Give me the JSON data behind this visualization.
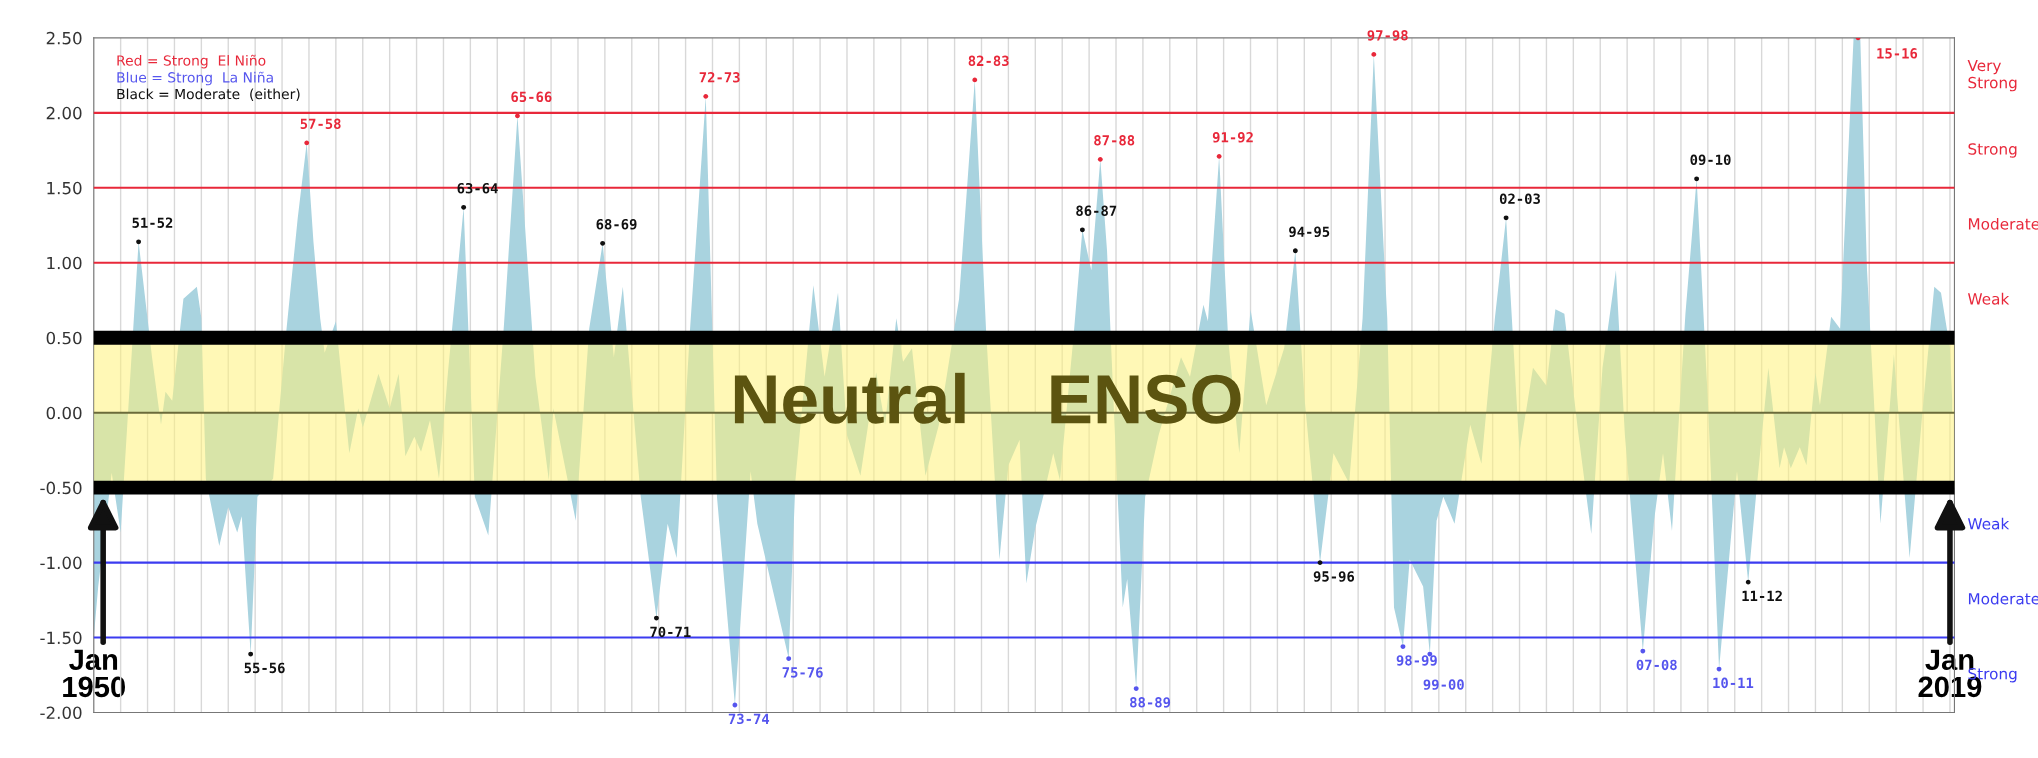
{
  "chart_data": {
    "type": "area",
    "x": [
      "1950-01",
      "1950-03",
      "1950-09",
      "1951-01",
      "1951-09",
      "1952-03",
      "1952-07",
      "1952-09",
      "1952-12",
      "1953-05",
      "1953-11",
      "1954-01",
      "1954-03",
      "1954-09",
      "1955-01",
      "1955-05",
      "1955-07",
      "1955-11",
      "1956-02",
      "1956-09",
      "1957-03",
      "1957-08",
      "1957-12",
      "1958-03",
      "1958-06",
      "1958-08",
      "1959-01",
      "1959-07",
      "1959-11",
      "1960-01",
      "1960-08",
      "1961-01",
      "1961-05",
      "1961-08",
      "1961-12",
      "1962-03",
      "1962-07",
      "1962-11",
      "1963-03",
      "1963-10",
      "1964-03",
      "1964-09",
      "1965-04",
      "1965-10",
      "1966-06",
      "1966-12",
      "1967-02",
      "1967-12",
      "1968-06",
      "1968-12",
      "1969-05",
      "1969-09",
      "1970-05",
      "1970-12",
      "1971-05",
      "1971-09",
      "1972-03",
      "1972-10",
      "1973-03",
      "1973-11",
      "1974-06",
      "1974-09",
      "1975-11",
      "1976-02",
      "1976-10",
      "1977-03",
      "1977-09",
      "1978-01",
      "1978-07",
      "1979-02",
      "1979-06",
      "1979-11",
      "1980-02",
      "1980-06",
      "1980-12",
      "1981-06",
      "1982-03",
      "1982-10",
      "1983-03",
      "1983-09",
      "1984-01",
      "1984-06",
      "1984-09",
      "1985-01",
      "1985-05",
      "1985-09",
      "1985-12",
      "1986-06",
      "1986-10",
      "1987-02",
      "1987-06",
      "1987-09",
      "1988-01",
      "1988-04",
      "1988-06",
      "1988-10",
      "1989-02",
      "1989-08",
      "1990-06",
      "1990-10",
      "1991-04",
      "1991-06",
      "1991-11",
      "1992-03",
      "1992-08",
      "1993-01",
      "1993-08",
      "1994-04",
      "1994-09",
      "1995-01",
      "1995-08",
      "1996-02",
      "1996-09",
      "1997-03",
      "1997-08",
      "1998-02",
      "1998-05",
      "1998-09",
      "1998-12",
      "1999-06",
      "1999-09",
      "1999-12",
      "2000-03",
      "2000-08",
      "2001-03",
      "2001-08",
      "2002-02",
      "2002-07",
      "2003-01",
      "2003-07",
      "2004-01",
      "2004-05",
      "2004-09",
      "2005-03",
      "2005-09",
      "2006-02",
      "2006-08",
      "2006-12",
      "2007-08",
      "2008-01",
      "2008-05",
      "2008-09",
      "2009-03",
      "2009-08",
      "2010-01",
      "2010-06",
      "2011-02",
      "2011-07",
      "2011-11",
      "2012-04",
      "2012-09",
      "2012-11",
      "2013-02",
      "2013-06",
      "2013-09",
      "2014-01",
      "2014-03",
      "2014-08",
      "2014-12",
      "2015-06",
      "2015-09",
      "2015-12",
      "2016-06",
      "2016-12",
      "2017-07",
      "2018-01",
      "2018-06",
      "2018-09",
      "2019-01",
      "2019-02"
    ],
    "series": [
      {
        "color": "#a9d3df",
        "values": [
          -1.5,
          -1.16,
          -0.4,
          -0.8,
          1.14,
          0.37,
          -0.08,
          0.14,
          0.08,
          0.76,
          0.84,
          0.63,
          -0.44,
          -0.89,
          -0.63,
          -0.8,
          -0.69,
          -1.61,
          -0.56,
          -0.44,
          0.56,
          1.3,
          1.8,
          1.14,
          0.63,
          0.4,
          0.61,
          -0.27,
          0.03,
          -0.1,
          0.26,
          0.03,
          0.26,
          -0.29,
          -0.16,
          -0.26,
          -0.05,
          -0.44,
          0.27,
          1.37,
          -0.56,
          -0.82,
          0.59,
          1.98,
          0.24,
          -0.45,
          0.03,
          -0.72,
          0.56,
          1.13,
          0.37,
          0.84,
          -0.56,
          -1.37,
          -0.74,
          -0.97,
          0.56,
          2.11,
          -0.56,
          -1.95,
          -0.39,
          -0.74,
          -1.64,
          -0.45,
          0.85,
          0.24,
          0.8,
          -0.15,
          -0.42,
          0.27,
          -0.08,
          0.63,
          0.34,
          0.43,
          -0.42,
          -0.08,
          0.76,
          2.22,
          0.56,
          -0.98,
          -0.35,
          -0.18,
          -1.14,
          -0.77,
          -0.53,
          -0.27,
          -0.45,
          0.5,
          1.22,
          0.95,
          1.69,
          1.08,
          -0.31,
          -1.3,
          -1.11,
          -1.84,
          -0.56,
          -0.15,
          0.37,
          0.24,
          0.72,
          0.61,
          1.71,
          0.5,
          -0.27,
          0.69,
          0.05,
          0.43,
          1.08,
          0.11,
          -1.0,
          -0.27,
          -0.47,
          0.63,
          2.39,
          0.63,
          -1.3,
          -1.56,
          -0.98,
          -1.16,
          -1.61,
          -0.72,
          -0.56,
          -0.74,
          -0.08,
          -0.34,
          0.63,
          1.3,
          -0.26,
          0.3,
          0.18,
          0.69,
          0.66,
          -0.11,
          -0.81,
          0.3,
          0.95,
          -0.15,
          -1.59,
          -0.72,
          -0.27,
          -0.79,
          0.66,
          1.56,
          0.08,
          -1.71,
          -0.39,
          -1.13,
          -0.47,
          0.3,
          -0.37,
          -0.23,
          -0.37,
          -0.23,
          -0.35,
          0.27,
          0.05,
          0.64,
          0.56,
          2.5,
          2.5,
          0.95,
          -0.74,
          0.39,
          -0.97,
          0.05,
          0.84,
          0.8,
          0.43,
          0.08
        ]
      },
      {
        "type": "scatter",
        "marker": "circle",
        "color": "#e8283a",
        "x": [
          "1957-12",
          "1965-10",
          "1972-10",
          "1982-10",
          "1987-06",
          "1991-11",
          "1997-08",
          "2015-08"
        ],
        "values": [
          1.8,
          1.98,
          2.11,
          2.22,
          1.69,
          1.71,
          2.39,
          2.5
        ],
        "value_labels": [
          "57-58",
          "65-66",
          "72-73",
          "82-83",
          "87-88",
          "91-92",
          "97-98",
          "15-16"
        ]
      },
      {
        "type": "scatter",
        "marker": "circle",
        "color": "#5555ee",
        "x": [
          "1973-11",
          "1975-11",
          "1988-10",
          "1998-09",
          "1999-09",
          "2007-08",
          "2010-06"
        ],
        "values": [
          -1.95,
          -1.64,
          -1.84,
          -1.56,
          -1.61,
          -1.59,
          -1.71
        ],
        "value_labels": [
          "73-74",
          "75-76",
          "88-89",
          "98-99",
          "99-00",
          "07-08",
          "10-11"
        ]
      },
      {
        "type": "scatter",
        "marker": "circle",
        "color": "#111111",
        "x": [
          "1951-09",
          "1955-11",
          "1963-10",
          "1968-12",
          "1970-12",
          "1986-10",
          "1994-09",
          "1995-08",
          "2002-07",
          "2009-08",
          "2011-07"
        ],
        "values": [
          1.14,
          -1.61,
          1.37,
          1.13,
          -1.37,
          1.22,
          1.08,
          -1.0,
          1.3,
          1.56,
          -1.13
        ],
        "value_labels": [
          "51-52",
          "55-56",
          "63-64",
          "68-69",
          "70-71",
          "86-87",
          "94-95",
          "95-96",
          "02-03",
          "09-10",
          "11-12"
        ]
      }
    ],
    "xlim": [
      "1950-01",
      "2019-03"
    ],
    "ylim": [
      -2.0,
      2.5
    ],
    "yticks": [
      {
        "value": -2.0,
        "label": "-2.00"
      },
      {
        "value": -1.5,
        "label": "-1.50"
      },
      {
        "value": -1.0,
        "label": "-1.00"
      },
      {
        "value": -0.5,
        "label": "-0.50"
      },
      {
        "value": 0.0,
        "label": "0.00"
      },
      {
        "value": 0.5,
        "label": "0.50"
      },
      {
        "value": 1.0,
        "label": "1.00"
      },
      {
        "value": 1.5,
        "label": "1.50"
      },
      {
        "value": 2.0,
        "label": "2.00"
      },
      {
        "value": 2.5,
        "label": "2.50"
      }
    ],
    "xticks": [
      {
        "value": "1950-01",
        "label": "Jan\n1950"
      },
      {
        "value": "1951-01",
        "label": null
      },
      {
        "value": "1952-01",
        "label": null
      },
      {
        "value": "1953-01",
        "label": null
      },
      {
        "value": "1954-01",
        "label": null
      },
      {
        "value": "1955-01",
        "label": null
      },
      {
        "value": "1956-01",
        "label": null
      },
      {
        "value": "1957-01",
        "label": null
      },
      {
        "value": "1958-01",
        "label": null
      },
      {
        "value": "1959-01",
        "label": null
      },
      {
        "value": "1960-01",
        "label": null
      },
      {
        "value": "1961-01",
        "label": null
      },
      {
        "value": "1962-01",
        "label": null
      },
      {
        "value": "1963-01",
        "label": null
      },
      {
        "value": "1964-01",
        "label": null
      },
      {
        "value": "1965-01",
        "label": null
      },
      {
        "value": "1966-01",
        "label": null
      },
      {
        "value": "1967-01",
        "label": null
      },
      {
        "value": "1968-01",
        "label": null
      },
      {
        "value": "1969-01",
        "label": null
      },
      {
        "value": "1970-01",
        "label": null
      },
      {
        "value": "1971-01",
        "label": null
      },
      {
        "value": "1972-01",
        "label": null
      },
      {
        "value": "1973-01",
        "label": null
      },
      {
        "value": "1974-01",
        "label": null
      },
      {
        "value": "1975-01",
        "label": null
      },
      {
        "value": "1976-01",
        "label": null
      },
      {
        "value": "1977-01",
        "label": null
      },
      {
        "value": "1978-01",
        "label": null
      },
      {
        "value": "1979-01",
        "label": null
      },
      {
        "value": "1980-01",
        "label": null
      },
      {
        "value": "1981-01",
        "label": null
      },
      {
        "value": "1982-01",
        "label": null
      },
      {
        "value": "1983-01",
        "label": null
      },
      {
        "value": "1984-01",
        "label": null
      },
      {
        "value": "1985-01",
        "label": null
      },
      {
        "value": "1986-01",
        "label": null
      },
      {
        "value": "1987-01",
        "label": null
      },
      {
        "value": "1988-01",
        "label": null
      },
      {
        "value": "1989-01",
        "label": null
      },
      {
        "value": "1990-01",
        "label": null
      },
      {
        "value": "1991-01",
        "label": null
      },
      {
        "value": "1992-01",
        "label": null
      },
      {
        "value": "1993-01",
        "label": null
      },
      {
        "value": "1994-01",
        "label": null
      },
      {
        "value": "1995-01",
        "label": null
      },
      {
        "value": "1996-01",
        "label": null
      },
      {
        "value": "1997-01",
        "label": null
      },
      {
        "value": "1998-01",
        "label": null
      },
      {
        "value": "1999-01",
        "label": null
      },
      {
        "value": "2000-01",
        "label": null
      },
      {
        "value": "2001-01",
        "label": null
      },
      {
        "value": "2002-01",
        "label": null
      },
      {
        "value": "2003-01",
        "label": null
      },
      {
        "value": "2004-01",
        "label": null
      },
      {
        "value": "2005-01",
        "label": null
      },
      {
        "value": "2006-01",
        "label": null
      },
      {
        "value": "2007-01",
        "label": null
      },
      {
        "value": "2008-01",
        "label": null
      },
      {
        "value": "2009-01",
        "label": null
      },
      {
        "value": "2010-01",
        "label": null
      },
      {
        "value": "2011-01",
        "label": null
      },
      {
        "value": "2012-01",
        "label": null
      },
      {
        "value": "2013-01",
        "label": null
      },
      {
        "value": "2014-01",
        "label": null
      },
      {
        "value": "2015-01",
        "label": null
      },
      {
        "value": "2016-01",
        "label": null
      },
      {
        "value": "2017-01",
        "label": null
      },
      {
        "value": "2018-01",
        "label": null
      },
      {
        "value": "2019-01",
        "label": "Jan\n2019"
      }
    ],
    "grid": "x",
    "bands": [
      {
        "axis": "y",
        "from": -0.5,
        "to": 0.5,
        "label": "Neutral    ENSO",
        "color": "#fff27a"
      }
    ],
    "ref_lines": [
      {
        "axis": "y",
        "value": 2.0,
        "color": "#e8283a"
      },
      {
        "axis": "y",
        "value": 1.5,
        "color": "#e8283a"
      },
      {
        "axis": "y",
        "value": 1.0,
        "color": "#e8283a"
      },
      {
        "axis": "y",
        "value": 0.5,
        "color": "#000000"
      },
      {
        "axis": "y",
        "value": 0.0,
        "color": "#6b6b3a"
      },
      {
        "axis": "y",
        "value": -0.5,
        "color": "#000000"
      },
      {
        "axis": "y",
        "value": -1.0,
        "color": "#3b3bf0"
      },
      {
        "axis": "y",
        "value": -1.5,
        "color": "#3b3bf0"
      }
    ],
    "annotations": [
      "Red = Strong  El Niño",
      "Blue = Strong  La Niña",
      "Black = Moderate  (either)",
      "Very\nStrong",
      "Strong",
      "Moderate",
      "Weak",
      "Weak",
      "Moderate",
      "Strong"
    ]
  }
}
